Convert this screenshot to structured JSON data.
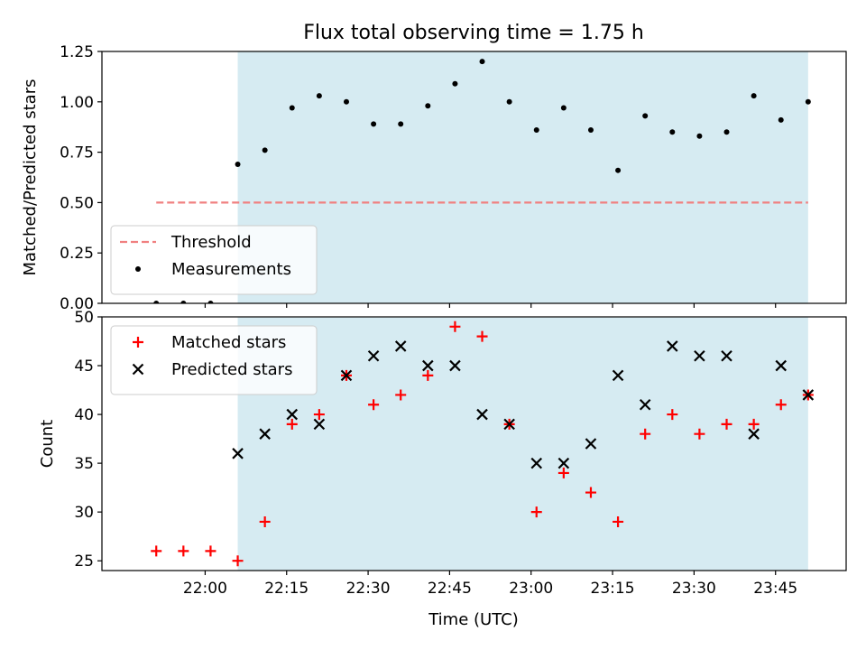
{
  "title": "Flux total observing time = 1.75 h",
  "xlabel": "Time (UTC)",
  "x_ticks": [
    "22:00",
    "22:15",
    "22:30",
    "22:45",
    "23:00",
    "23:15",
    "23:30",
    "23:45"
  ],
  "colors": {
    "shade": "#add8e6",
    "threshold": "#f08080",
    "measurements": "#000000",
    "matched": "#ff0000",
    "predicted": "#000000"
  },
  "chart_data": [
    {
      "type": "scatter",
      "ylabel": "Matched/Predicted stars",
      "ylim": [
        0,
        1.25
      ],
      "y_ticks": [
        "0.00",
        "0.25",
        "0.50",
        "0.75",
        "1.00",
        "1.25"
      ],
      "shaded_span": [
        "22:06",
        "23:51"
      ],
      "legend_location": "lower-left",
      "threshold": {
        "name": "Threshold",
        "value": 0.5,
        "x_range": [
          "21:51",
          "23:51"
        ]
      },
      "series": [
        {
          "name": "Measurements",
          "x": [
            "21:51",
            "21:56",
            "22:01",
            "22:06",
            "22:11",
            "22:16",
            "22:21",
            "22:26",
            "22:31",
            "22:36",
            "22:41",
            "22:46",
            "22:51",
            "22:56",
            "23:01",
            "23:06",
            "23:11",
            "23:16",
            "23:21",
            "23:26",
            "23:31",
            "23:36",
            "23:41",
            "23:46",
            "23:51"
          ],
          "values": [
            0.0,
            0.0,
            0.0,
            0.69,
            0.76,
            0.97,
            1.03,
            1.0,
            0.89,
            0.89,
            0.98,
            1.09,
            1.2,
            1.0,
            0.86,
            0.97,
            0.86,
            0.66,
            0.93,
            0.85,
            0.83,
            0.85,
            1.03,
            0.91,
            1.0
          ]
        }
      ]
    },
    {
      "type": "scatter",
      "ylabel": "Count",
      "ylim": [
        24,
        50
      ],
      "y_ticks": [
        "25",
        "30",
        "35",
        "40",
        "45",
        "50"
      ],
      "shaded_span": [
        "22:06",
        "23:51"
      ],
      "legend_location": "upper-left",
      "series": [
        {
          "name": "Matched stars",
          "x": [
            "21:51",
            "21:56",
            "22:01",
            "22:06",
            "22:11",
            "22:16",
            "22:21",
            "22:26",
            "22:31",
            "22:36",
            "22:41",
            "22:46",
            "22:51",
            "22:56",
            "23:01",
            "23:06",
            "23:11",
            "23:16",
            "23:21",
            "23:26",
            "23:31",
            "23:36",
            "23:41",
            "23:46",
            "23:51"
          ],
          "values": [
            26,
            26,
            26,
            25,
            29,
            39,
            40,
            44,
            41,
            42,
            44,
            49,
            48,
            39,
            30,
            34,
            32,
            29,
            38,
            40,
            38,
            39,
            39,
            41,
            42
          ]
        },
        {
          "name": "Predicted stars",
          "x": [
            "22:06",
            "22:11",
            "22:16",
            "22:21",
            "22:26",
            "22:31",
            "22:36",
            "22:41",
            "22:46",
            "22:51",
            "22:56",
            "23:01",
            "23:06",
            "23:11",
            "23:16",
            "23:21",
            "23:26",
            "23:31",
            "23:36",
            "23:41",
            "23:46",
            "23:51"
          ],
          "values": [
            36,
            38,
            40,
            39,
            44,
            46,
            47,
            45,
            45,
            40,
            39,
            35,
            35,
            37,
            44,
            41,
            47,
            46,
            46,
            38,
            45,
            42
          ]
        }
      ]
    }
  ]
}
